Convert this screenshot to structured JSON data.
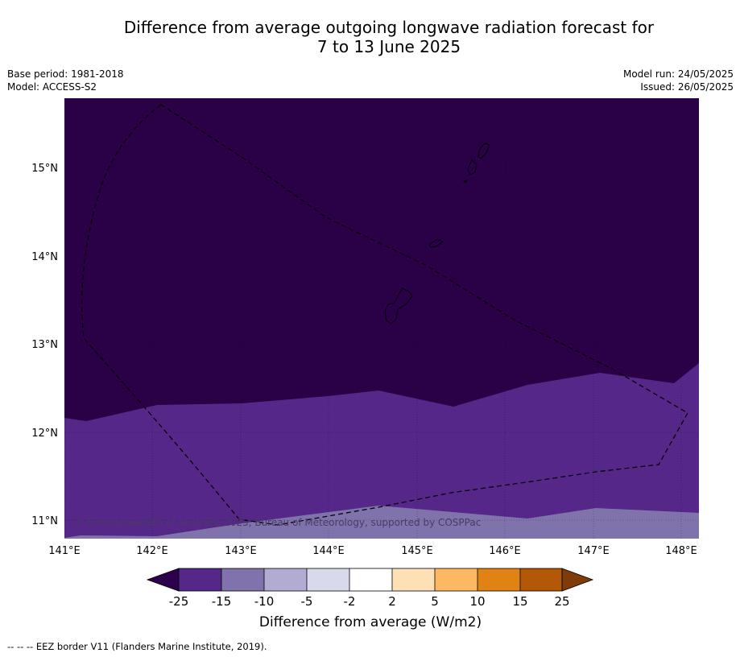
{
  "title": {
    "line1": "Difference from average outgoing longwave radiation forecast for",
    "line2": "7 to 13 June 2025"
  },
  "meta": {
    "base_period": "Base period: 1981-2018",
    "model": "Model: ACCESS-S2",
    "model_run": "Model run: 24/05/2025",
    "issued": "Issued: 26/05/2025"
  },
  "map": {
    "copyright": "© Commonwealth of Australia 2025, Bureau of Meteorology, supported by COSPPac",
    "lon_ticks": [
      "141°E",
      "142°E",
      "143°E",
      "144°E",
      "145°E",
      "146°E",
      "147°E",
      "148°E"
    ],
    "lat_ticks": [
      "15°N",
      "14°N",
      "13°N",
      "12°N",
      "11°N"
    ],
    "lon_range": [
      141.0,
      148.2
    ],
    "lat_range": [
      10.8,
      15.8
    ],
    "region_colors": {
      "below_-25": "#2a0046",
      "-25_to_-15": "#542788",
      "-15_to_-10": "#8073ac"
    },
    "legend_line": "--  --  -- EEZ border V11 (Flanders Marine Institute, 2019)."
  },
  "colorbar": {
    "label": "Difference from average (W/m2)",
    "ticks": [
      "-25",
      "-15",
      "-10",
      "-5",
      "-2",
      "2",
      "5",
      "10",
      "15",
      "25"
    ],
    "under_color": "#2d004b",
    "over_color": "#7f3b08",
    "colors": [
      "#542788",
      "#8073ac",
      "#b2abd2",
      "#d8daeb",
      "#ffffff",
      "#fee0b6",
      "#fdb863",
      "#e08214",
      "#b35806"
    ]
  }
}
